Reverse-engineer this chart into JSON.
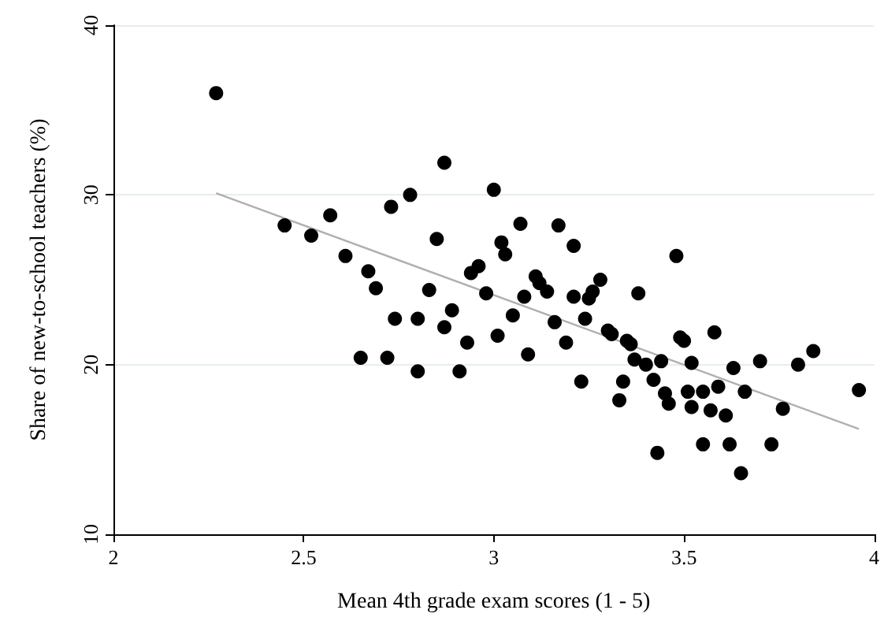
{
  "chart_data": {
    "type": "scatter",
    "xlabel": "Mean 4th grade exam scores (1 - 5)",
    "ylabel": "Share of new-to-school teachers (%)",
    "xlim": [
      2,
      4
    ],
    "xticks": [
      2,
      2.5,
      3,
      3.5,
      4
    ],
    "ylim": [
      10,
      40
    ],
    "yticks": [
      10,
      20,
      30,
      40
    ],
    "grid": "y",
    "marker": "circle",
    "series": [
      {
        "color": "#000000",
        "x": [
          2.27,
          2.45,
          2.52,
          2.57,
          2.61,
          2.65,
          2.67,
          2.69,
          2.72,
          2.74,
          2.8,
          2.73,
          2.78,
          2.8,
          2.83,
          2.85,
          2.87,
          2.87,
          2.89,
          2.91,
          2.93,
          2.94,
          2.96,
          2.98,
          3.0,
          3.01,
          3.02,
          3.03,
          3.05,
          3.07,
          3.08,
          3.09,
          3.11,
          3.12,
          3.14,
          3.16,
          3.17,
          3.19,
          3.21,
          3.21,
          3.23,
          3.24,
          3.25,
          3.26,
          3.28,
          3.3,
          3.31,
          3.33,
          3.34,
          3.35,
          3.36,
          3.37,
          3.38,
          3.4,
          3.42,
          3.43,
          3.44,
          3.45,
          3.46,
          3.48,
          3.49,
          3.5,
          3.51,
          3.52,
          3.52,
          3.55,
          3.55,
          3.57,
          3.58,
          3.59,
          3.61,
          3.62,
          3.63,
          3.65,
          3.66,
          3.7,
          3.73,
          3.76,
          3.8,
          3.84,
          3.96
        ],
        "values": [
          36.0,
          28.2,
          27.6,
          28.8,
          26.4,
          20.4,
          25.5,
          24.5,
          20.4,
          22.7,
          22.7,
          29.3,
          30.0,
          19.6,
          24.4,
          27.4,
          31.9,
          22.2,
          23.2,
          19.6,
          21.3,
          25.4,
          25.8,
          24.2,
          30.3,
          21.7,
          27.2,
          26.5,
          22.9,
          28.3,
          24.0,
          20.6,
          25.2,
          24.8,
          24.3,
          22.5,
          28.2,
          21.3,
          24.0,
          27.0,
          19.0,
          22.7,
          23.9,
          24.3,
          25.0,
          22.0,
          21.8,
          17.9,
          19.0,
          21.4,
          21.2,
          20.3,
          24.2,
          20.0,
          19.1,
          14.8,
          20.2,
          18.3,
          17.7,
          26.4,
          21.6,
          21.4,
          18.4,
          17.5,
          20.1,
          15.3,
          18.4,
          17.3,
          21.9,
          18.7,
          17.0,
          15.3,
          19.8,
          13.6,
          18.4,
          20.2,
          15.3,
          17.4,
          20.0,
          20.8,
          18.5
        ]
      },
      {
        "type": "line",
        "color": "#b0b0b0",
        "marker": "none",
        "x": [
          2.27,
          3.96
        ],
        "values": [
          30.1,
          16.2
        ]
      }
    ]
  }
}
